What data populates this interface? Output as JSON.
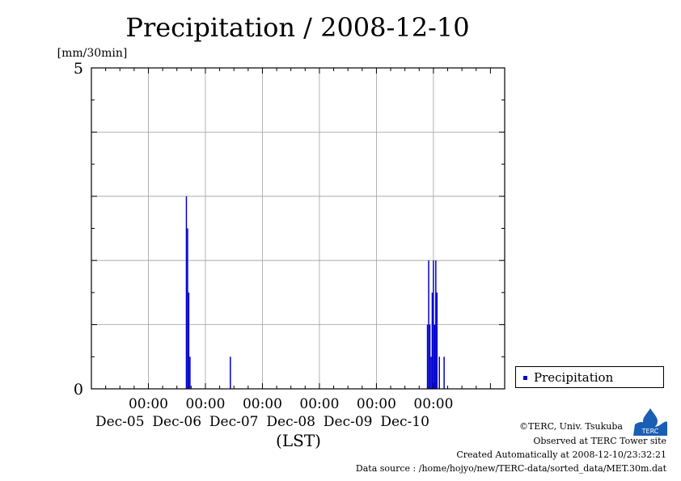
{
  "chart_data": {
    "type": "bar",
    "title": "Precipitation / 2008-12-10",
    "ylabel": "[mm/30min]",
    "xlabel": "(LST)",
    "ylim": [
      0,
      5
    ],
    "y_ticks": [
      {
        "value": 0,
        "label": "0"
      },
      {
        "value": 5,
        "label": "5"
      }
    ],
    "y_grid": [
      1,
      2,
      3,
      4
    ],
    "x_ticks": [
      {
        "hour": 24,
        "time": "00:00",
        "date": "Dec-05"
      },
      {
        "hour": 48,
        "time": "00:00",
        "date": "Dec-06"
      },
      {
        "hour": 72,
        "time": "00:00",
        "date": "Dec-07"
      },
      {
        "hour": 96,
        "time": "00:00",
        "date": "Dec-08"
      },
      {
        "hour": 120,
        "time": "00:00",
        "date": "Dec-09"
      },
      {
        "hour": 144,
        "time": "00:00",
        "date": "Dec-10"
      }
    ],
    "grid": true,
    "legend": {
      "position": "right",
      "entries": [
        {
          "name": "Precipitation",
          "color": "#0000cc"
        }
      ]
    },
    "series": [
      {
        "name": "Precipitation",
        "color": "#0000cc",
        "interval_hours": 0.5,
        "points": [
          {
            "t": "2008-12-05T16:00",
            "v": 3.0
          },
          {
            "t": "2008-12-05T16:30",
            "v": 2.5
          },
          {
            "t": "2008-12-05T17:00",
            "v": 1.5
          },
          {
            "t": "2008-12-05T17:30",
            "v": 0.5
          },
          {
            "t": "2008-12-06T10:30",
            "v": 0.5
          },
          {
            "t": "2008-12-09T21:30",
            "v": 1.0
          },
          {
            "t": "2008-12-09T22:00",
            "v": 2.0
          },
          {
            "t": "2008-12-09T22:30",
            "v": 1.0
          },
          {
            "t": "2008-12-09T23:00",
            "v": 0.5
          },
          {
            "t": "2008-12-09T23:30",
            "v": 1.5
          },
          {
            "t": "2008-12-10T00:00",
            "v": 2.0
          },
          {
            "t": "2008-12-10T00:30",
            "v": 1.0
          },
          {
            "t": "2008-12-10T01:00",
            "v": 2.0
          },
          {
            "t": "2008-12-10T01:30",
            "v": 1.5
          },
          {
            "t": "2008-12-10T02:30",
            "v": 0.5
          },
          {
            "t": "2008-12-10T04:30",
            "v": 0.5
          }
        ]
      }
    ]
  },
  "footer": {
    "copyright": "©TERC, Univ. Tsukuba",
    "observed": "Observed at TERC Tower site",
    "created": "Created Automatically at 2008-12-10/23:32:21",
    "source": "Data source : /home/hojyo/new/TERC-data/sorted_data/MET.30m.dat"
  },
  "logo": {
    "text": "TERC",
    "color": "#1a5fb4"
  }
}
